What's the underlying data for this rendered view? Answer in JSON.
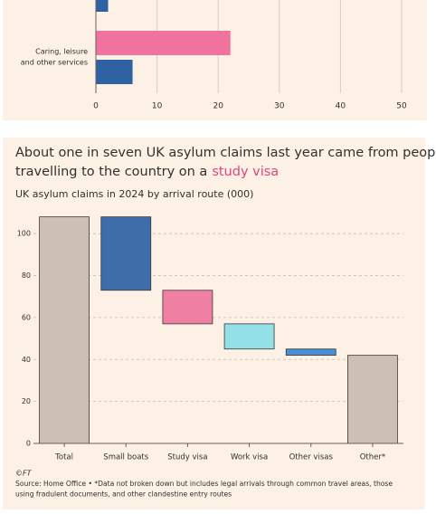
{
  "chart_data": [
    {
      "type": "hbar",
      "categories": [
        null,
        [
          "Caring, leisure",
          "and other services"
        ]
      ],
      "series": [
        {
          "color": "#f0739f",
          "values": [
            null,
            22
          ]
        },
        {
          "color": "#2f62a3",
          "values": [
            2,
            6
          ]
        }
      ],
      "xlim": [
        0,
        50
      ],
      "xticks": [
        0,
        10,
        20,
        30,
        40,
        50
      ],
      "grid": true
    },
    {
      "type": "waterfall",
      "title_lines": [
        "About one in seven UK asylum claims last year came from people",
        "travelling to the country on a"
      ],
      "title_highlight": "study visa",
      "subtitle": "UK asylum claims in 2024 by arrival route (000)",
      "categories": [
        "Total",
        "Small boats",
        "Study visa",
        "Work visa",
        "Other visas",
        "Other*"
      ],
      "values": [
        108,
        -35,
        -16,
        -12,
        -3,
        42
      ],
      "measure": [
        "absolute",
        "relative",
        "relative",
        "relative",
        "relative",
        "absolute"
      ],
      "colors": [
        "#cdbfb5",
        "#3d6ea9",
        "#f07fa4",
        "#93e0e6",
        "#4a8fd3",
        "#cdbfb5"
      ],
      "highlight_color": "#e0457e",
      "ylim": [
        0,
        110
      ],
      "yticks": [
        0,
        20,
        40,
        60,
        80,
        100
      ],
      "grid": true,
      "credit": "©FT",
      "source_lines": [
        "Source: Home Office • *Data not broken down but includes legal arrivals through common travel areas, those",
        "using fradulent documents, and other clandestine entry routes"
      ]
    }
  ]
}
